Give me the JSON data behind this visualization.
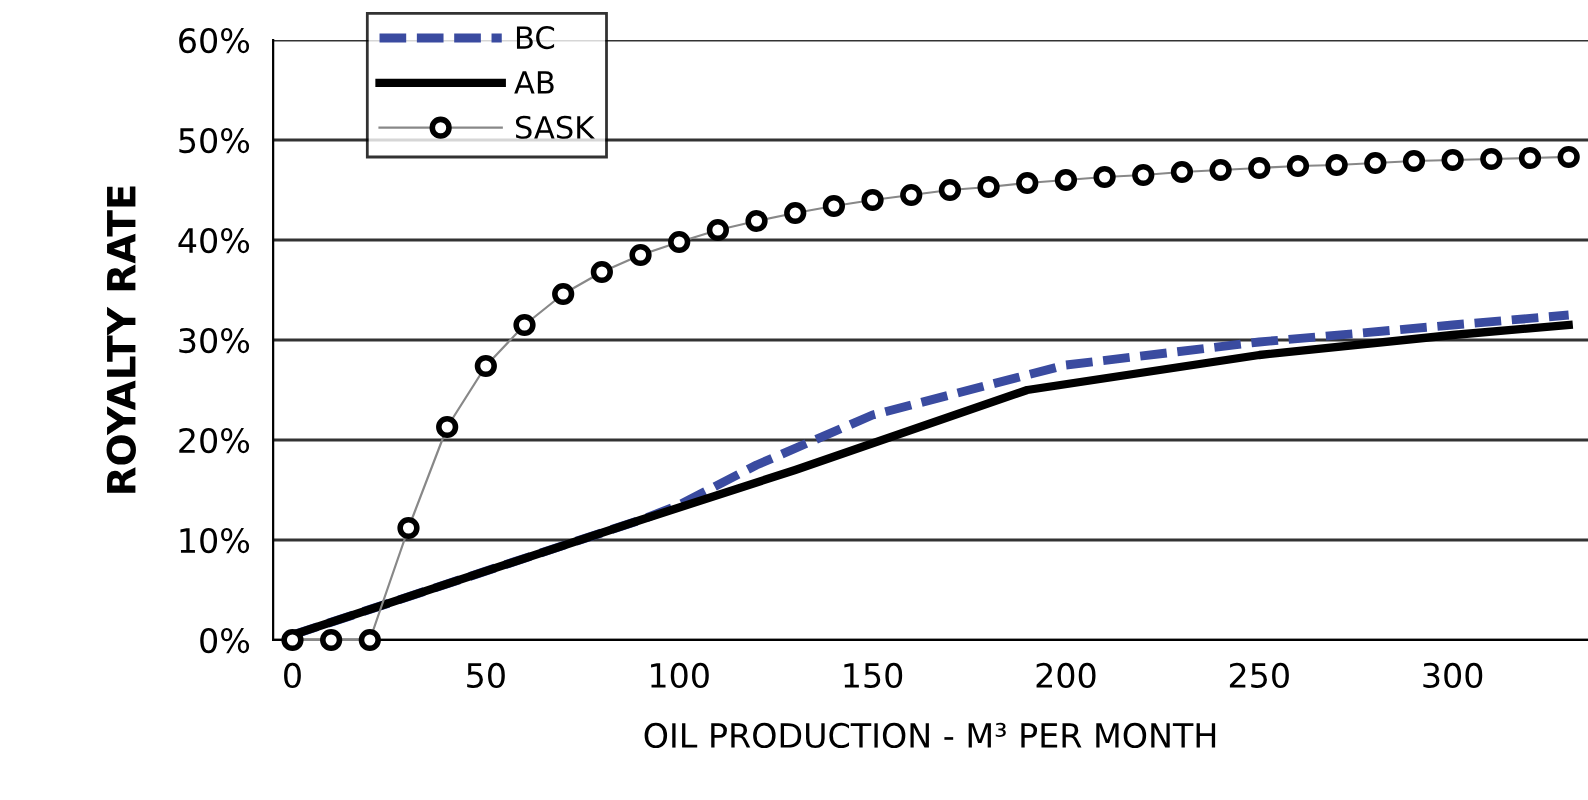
{
  "chart_data": {
    "type": "line",
    "xlabel": "OIL PRODUCTION - M³ PER MONTH",
    "ylabel": "ROYALTY RATE",
    "xlim": [
      -5,
      335
    ],
    "xticks": [
      0,
      50,
      100,
      150,
      200,
      250,
      300
    ],
    "ylim": [
      0,
      60
    ],
    "yticks": [
      {
        "value": 0,
        "label": "0%"
      },
      {
        "value": 10,
        "label": "10%"
      },
      {
        "value": 20,
        "label": "20%"
      },
      {
        "value": 30,
        "label": "30%"
      },
      {
        "value": 40,
        "label": "40%"
      },
      {
        "value": 50,
        "label": "50%"
      },
      {
        "value": 60,
        "label": "60%"
      }
    ],
    "grid": "y",
    "legend": "top left",
    "series": [
      {
        "name": "BC",
        "color": "#3a4ba0",
        "line_style": "dashed",
        "marker": "none",
        "x": [
          0,
          90,
          100,
          120,
          150,
          200,
          250,
          300,
          330
        ],
        "values": [
          0.5,
          12,
          13.5,
          17.5,
          22.5,
          27.5,
          29.8,
          31.5,
          32.5
        ]
      },
      {
        "name": "AB",
        "color": "#000000",
        "line_style": "solid",
        "marker": "none",
        "x": [
          0,
          90,
          130,
          190,
          250,
          300,
          330
        ],
        "values": [
          0.5,
          12,
          17,
          25,
          28.5,
          30.5,
          31.5
        ]
      },
      {
        "name": "SASK",
        "color": "#000000",
        "line_style": "solid",
        "marker": "circle",
        "x": [
          0,
          10,
          20,
          30,
          40,
          50,
          60,
          70,
          80,
          90,
          100,
          110,
          120,
          130,
          140,
          150,
          160,
          170,
          180,
          190,
          200,
          210,
          220,
          230,
          240,
          250,
          260,
          270,
          280,
          290,
          300,
          310,
          320,
          330
        ],
        "values": [
          0,
          0,
          0,
          11.2,
          21.3,
          27.4,
          31.5,
          34.6,
          36.8,
          38.5,
          39.8,
          41,
          41.9,
          42.7,
          43.4,
          44,
          44.5,
          45,
          45.3,
          45.7,
          46,
          46.3,
          46.5,
          46.8,
          47,
          47.2,
          47.4,
          47.5,
          47.7,
          47.9,
          48,
          48.1,
          48.2,
          48.3
        ]
      }
    ]
  }
}
